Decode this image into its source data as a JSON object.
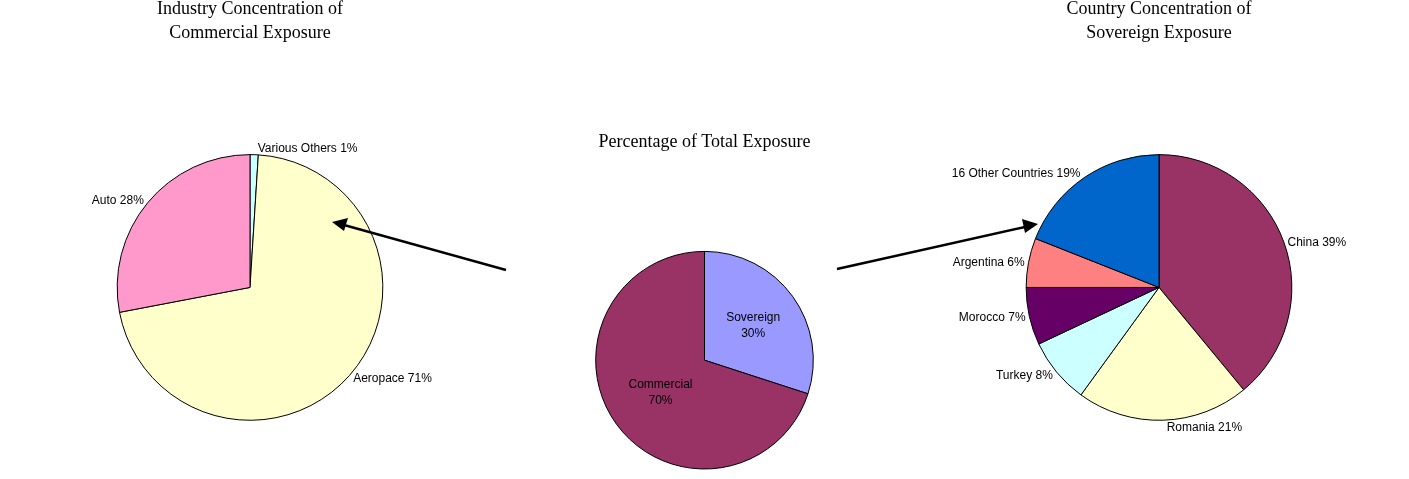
{
  "chart_data": [
    {
      "type": "pie",
      "title": "Industry Concentration of\nCommercial Exposure",
      "categories": [
        "Various Others",
        "Aeropace",
        "Auto"
      ],
      "values": [
        1,
        71,
        28
      ],
      "value_labels": [
        "1%",
        "71%",
        "28%"
      ],
      "colors": [
        "#ccffff",
        "#ffffcc",
        "#ff99cc"
      ]
    },
    {
      "type": "pie",
      "title": "Percentage of Total Exposure",
      "categories": [
        "Sovereign",
        "Commercial"
      ],
      "values": [
        30,
        70
      ],
      "value_labels": [
        "30%",
        "70%"
      ],
      "colors": [
        "#9999ff",
        "#993366"
      ]
    },
    {
      "type": "pie",
      "title": "Country Concentration of\nSovereign Exposure",
      "categories": [
        "China",
        "Romania",
        "Turkey",
        "Morocco",
        "Argentina",
        "16 Other Countries"
      ],
      "values": [
        39,
        21,
        8,
        7,
        6,
        19
      ],
      "value_labels": [
        "39%",
        "21%",
        "8%",
        "7%",
        "6%",
        "19%"
      ],
      "colors": [
        "#993366",
        "#ffffcc",
        "#ccffff",
        "#660066",
        "#ff8080",
        "#0066cc"
      ]
    }
  ]
}
